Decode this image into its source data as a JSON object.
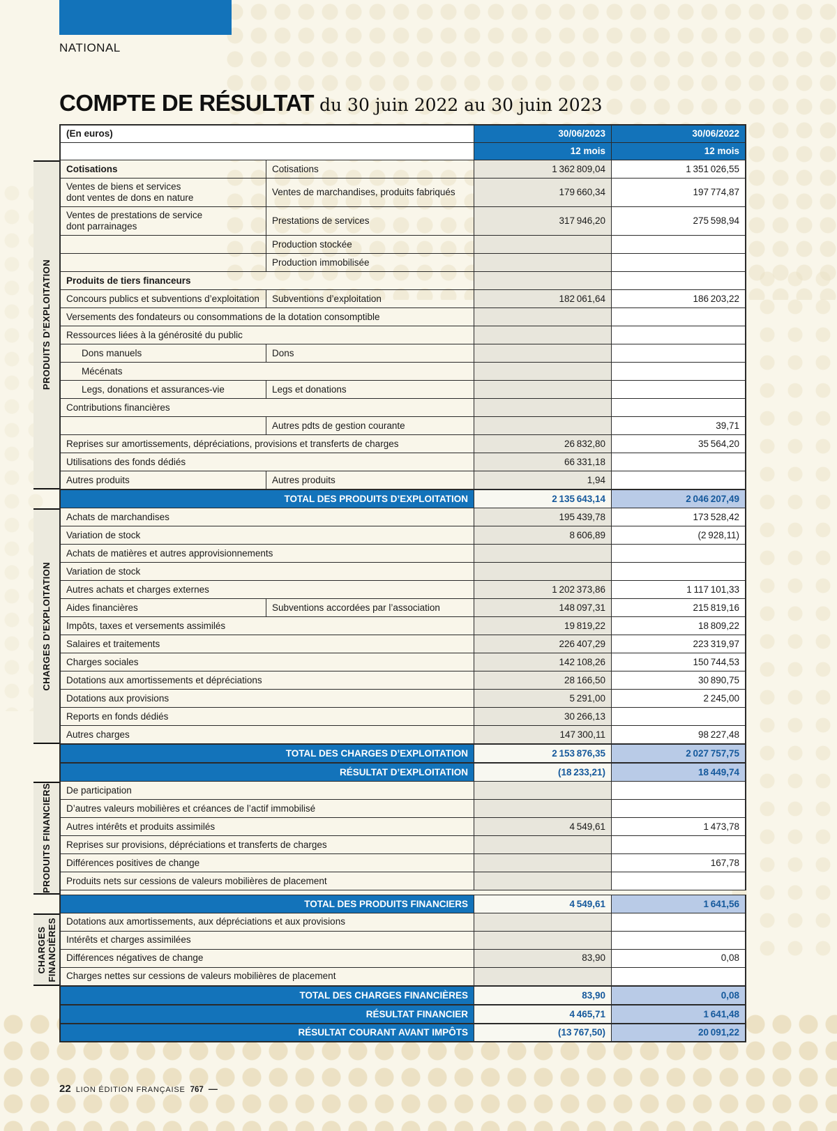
{
  "page": {
    "tag": "NATIONAL",
    "title": "COMPTE DE RÉSULTAT",
    "subtitle": "du 30 juin 2022 au 30 juin 2023",
    "footer": {
      "page_number": "22",
      "magazine": "LION ÉDITION FRANÇAISE",
      "issue": "767",
      "dash": "—"
    }
  },
  "colors": {
    "accent_blue": "#1373ba",
    "total_value_text": "#15599c",
    "total_2022_bg": "#b9cbe7",
    "value_2023_bg": "#e8e6dc",
    "strip_bg": "#eceade"
  },
  "table": {
    "unit_label": "(En euros)",
    "columns": [
      {
        "date": "30/06/2023",
        "period": "12 mois"
      },
      {
        "date": "30/06/2022",
        "period": "12 mois"
      }
    ],
    "sections": [
      {
        "label": "PRODUITS D’EXPLOITATION",
        "rows": [
          {
            "l1": "Cotisations",
            "bold": true,
            "l2": "Cotisations",
            "v23": "1 362 809,04",
            "v22": "1 351 026,55"
          },
          {
            "l1": "Ventes de biens et services\ndont ventes de dons en nature",
            "l2": "Ventes de marchandises, produits fabriqués",
            "v23": "179 660,34",
            "v22": "197 774,87",
            "tall": true
          },
          {
            "l1": "Ventes de prestations de service\ndont parrainages",
            "l2": "Prestations de services",
            "v23": "317 946,20",
            "v22": "275 598,94",
            "tall": true
          },
          {
            "l1": "",
            "l2": "Production stockée"
          },
          {
            "l1": "",
            "l2": "Production immobilisée"
          },
          {
            "l1": "Produits de tiers financeurs",
            "bold": true,
            "span": true
          },
          {
            "l1": "Concours publics et subventions d’exploitation",
            "l2": "Subventions d’exploitation",
            "v23": "182 061,64",
            "v22": "186 203,22"
          },
          {
            "l1": "Versements des fondateurs ou consommations de la dotation consomptible",
            "span": true
          },
          {
            "l1": "Ressources liées à la générosité du public",
            "span": true
          },
          {
            "l1": "Dons manuels",
            "indent": true,
            "l2": "Dons"
          },
          {
            "l1": "Mécénats",
            "indent": true,
            "span": true
          },
          {
            "l1": "Legs, donations et assurances-vie",
            "indent": true,
            "l2": "Legs et donations"
          },
          {
            "l1": "Contributions financières",
            "span": true
          },
          {
            "l1": "",
            "l2": "Autres pdts de gestion courante",
            "v22": "39,71"
          },
          {
            "l1": "Reprises sur amortissements, dépréciations, provisions et transferts de charges",
            "span": true,
            "v23": "26 832,80",
            "v22": "35 564,20"
          },
          {
            "l1": "Utilisations des fonds dédiés",
            "span": true,
            "v23": "66 331,18"
          },
          {
            "l1": "Autres produits",
            "l2": "Autres produits",
            "v23": "1,94"
          }
        ],
        "totals": [
          {
            "label": "TOTAL DES PRODUITS D’EXPLOITATION",
            "v23": "2 135 643,14",
            "v22": "2 046 207,49"
          }
        ]
      },
      {
        "label": "CHARGES D’EXPLOITATION",
        "rows": [
          {
            "l1": "Achats de marchandises",
            "span": true,
            "v23": "195 439,78",
            "v22": "173 528,42"
          },
          {
            "l1": "Variation de stock",
            "span": true,
            "v23": "8 606,89",
            "v22": "(2 928,11)"
          },
          {
            "l1": "Achats de matières et autres approvisionnements",
            "span": true
          },
          {
            "l1": "Variation de stock",
            "span": true
          },
          {
            "l1": "Autres achats et charges externes",
            "span": true,
            "v23": "1 202 373,86",
            "v22": "1 117 101,33"
          },
          {
            "l1": "Aides financières",
            "l2": "Subventions accordées par l’association",
            "v23": "148 097,31",
            "v22": "215 819,16"
          },
          {
            "l1": "Impôts, taxes et versements assimilés",
            "span": true,
            "v23": "19 819,22",
            "v22": "18 809,22"
          },
          {
            "l1": "Salaires et traitements",
            "span": true,
            "v23": "226 407,29",
            "v22": "223 319,97"
          },
          {
            "l1": "Charges sociales",
            "span": true,
            "v23": "142 108,26",
            "v22": "150 744,53"
          },
          {
            "l1": "Dotations aux amortissements et dépréciations",
            "span": true,
            "v23": "28 166,50",
            "v22": "30 890,75"
          },
          {
            "l1": "Dotations aux provisions",
            "span": true,
            "v23": "5 291,00",
            "v22": "2 245,00"
          },
          {
            "l1": "Reports en fonds dédiés",
            "span": true,
            "v23": "30 266,13"
          },
          {
            "l1": "Autres charges",
            "span": true,
            "v23": "147 300,11",
            "v22": "98 227,48"
          }
        ],
        "totals": [
          {
            "label": "TOTAL DES CHARGES D’EXPLOITATION",
            "v23": "2 153 876,35",
            "v22": "2 027 757,75"
          },
          {
            "label": "RÉSULTAT D’EXPLOITATION",
            "v23": "(18 233,21)",
            "v22": "18 449,74"
          }
        ]
      },
      {
        "label": "PRODUITS FINANCIERS",
        "rows": [
          {
            "l1": "De participation",
            "span": true
          },
          {
            "l1": "D’autres valeurs mobilières et créances de l’actif immobilisé",
            "span": true
          },
          {
            "l1": "Autres intérêts et produits assimilés",
            "span": true,
            "v23": "4 549,61",
            "v22": "1 473,78"
          },
          {
            "l1": "Reprises sur provisions, dépréciations et transferts de charges",
            "span": true
          },
          {
            "l1": "Différences positives de change",
            "span": true,
            "v22": "167,78"
          },
          {
            "l1": "Produits nets sur cessions de valeurs mobilières de placement",
            "span": true
          }
        ],
        "totals": [
          {
            "label": "TOTAL DES PRODUITS FINANCIERS",
            "v23": "4 549,61",
            "v22": "1 641,56"
          }
        ]
      },
      {
        "label": "CHARGES\nFINANCIÈRES",
        "rows": [
          {
            "l1": "Dotations aux amortissements, aux dépréciations et aux provisions",
            "span": true
          },
          {
            "l1": "Intérêts et charges assimilées",
            "span": true
          },
          {
            "l1": "Différences négatives de change",
            "span": true,
            "v23": "83,90",
            "v22": "0,08"
          },
          {
            "l1": "Charges nettes sur cessions de valeurs mobilières de placement",
            "span": true
          }
        ],
        "totals": [
          {
            "label": "TOTAL DES CHARGES FINANCIÈRES",
            "v23": "83,90",
            "v22": "0,08"
          },
          {
            "label": "RÉSULTAT FINANCIER",
            "v23": "4 465,71",
            "v22": "1 641,48"
          }
        ]
      }
    ],
    "grand_total": {
      "label": "RÉSULTAT COURANT AVANT IMPÔTS",
      "v23": "(13 767,50)",
      "v22": "20 091,22"
    }
  }
}
